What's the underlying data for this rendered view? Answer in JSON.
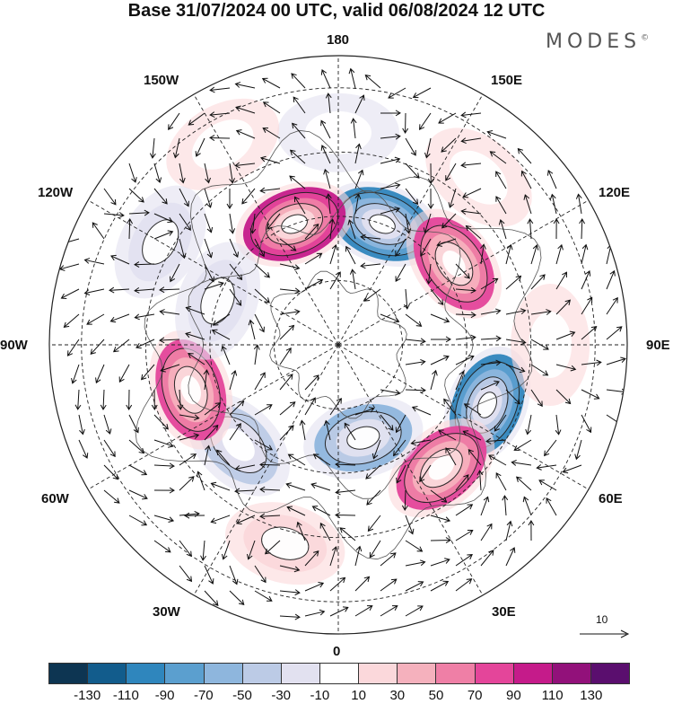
{
  "title": "Base 31/07/2024 00 UTC, valid 06/08/2024 12 UTC",
  "brand": "MODES",
  "brand_mark": "©",
  "longitude_labels": {
    "top": "180",
    "bottom": "0",
    "left": "90W",
    "right": "90E",
    "upper_left_1": "150W",
    "upper_left_2": "120W",
    "upper_right_1": "150E",
    "upper_right_2": "120E",
    "lower_left_1": "60W",
    "lower_left_2": "30W",
    "lower_right_1": "60E",
    "lower_right_2": "30E"
  },
  "vector_scale": {
    "label": "10"
  },
  "colorbar": {
    "colors": [
      "#0d3552",
      "#125c8c",
      "#2f86bd",
      "#5b9fcf",
      "#8eb6dd",
      "#bccbe6",
      "#e2e1f0",
      "#ffffff",
      "#fbd8db",
      "#f5b1bd",
      "#ef7fa6",
      "#e4459a",
      "#c51b8a",
      "#92117a",
      "#5a0e6e"
    ],
    "labels": [
      "-130",
      "-110",
      "-90",
      "-70",
      "-50",
      "-30",
      "-10",
      "10",
      "30",
      "50",
      "70",
      "90",
      "110",
      "130"
    ]
  },
  "anomaly_cells": [
    {
      "lon_deg": 160,
      "colat_deg": 40,
      "value": -120
    },
    {
      "lon_deg": 200,
      "colat_deg": 40,
      "value": 110
    },
    {
      "lon_deg": 125,
      "colat_deg": 44,
      "value": 100
    },
    {
      "lon_deg": 68,
      "colat_deg": 50,
      "value": -110
    },
    {
      "lon_deg": 40,
      "colat_deg": 50,
      "value": 100
    },
    {
      "lon_deg": 15,
      "colat_deg": 30,
      "value": -70
    },
    {
      "lon_deg": 315,
      "colat_deg": 44,
      "value": -50
    },
    {
      "lon_deg": 287,
      "colat_deg": 48,
      "value": 90
    },
    {
      "lon_deg": 250,
      "colat_deg": 40,
      "value": -30
    },
    {
      "lon_deg": 240,
      "colat_deg": 64,
      "value": -30
    },
    {
      "lon_deg": 345,
      "colat_deg": 64,
      "value": 40
    },
    {
      "lon_deg": 180,
      "colat_deg": 66,
      "value": -10
    },
    {
      "lon_deg": 140,
      "colat_deg": 68,
      "value": 20
    },
    {
      "lon_deg": 90,
      "colat_deg": 66,
      "value": 20
    },
    {
      "lon_deg": 210,
      "colat_deg": 72,
      "value": 20
    }
  ]
}
